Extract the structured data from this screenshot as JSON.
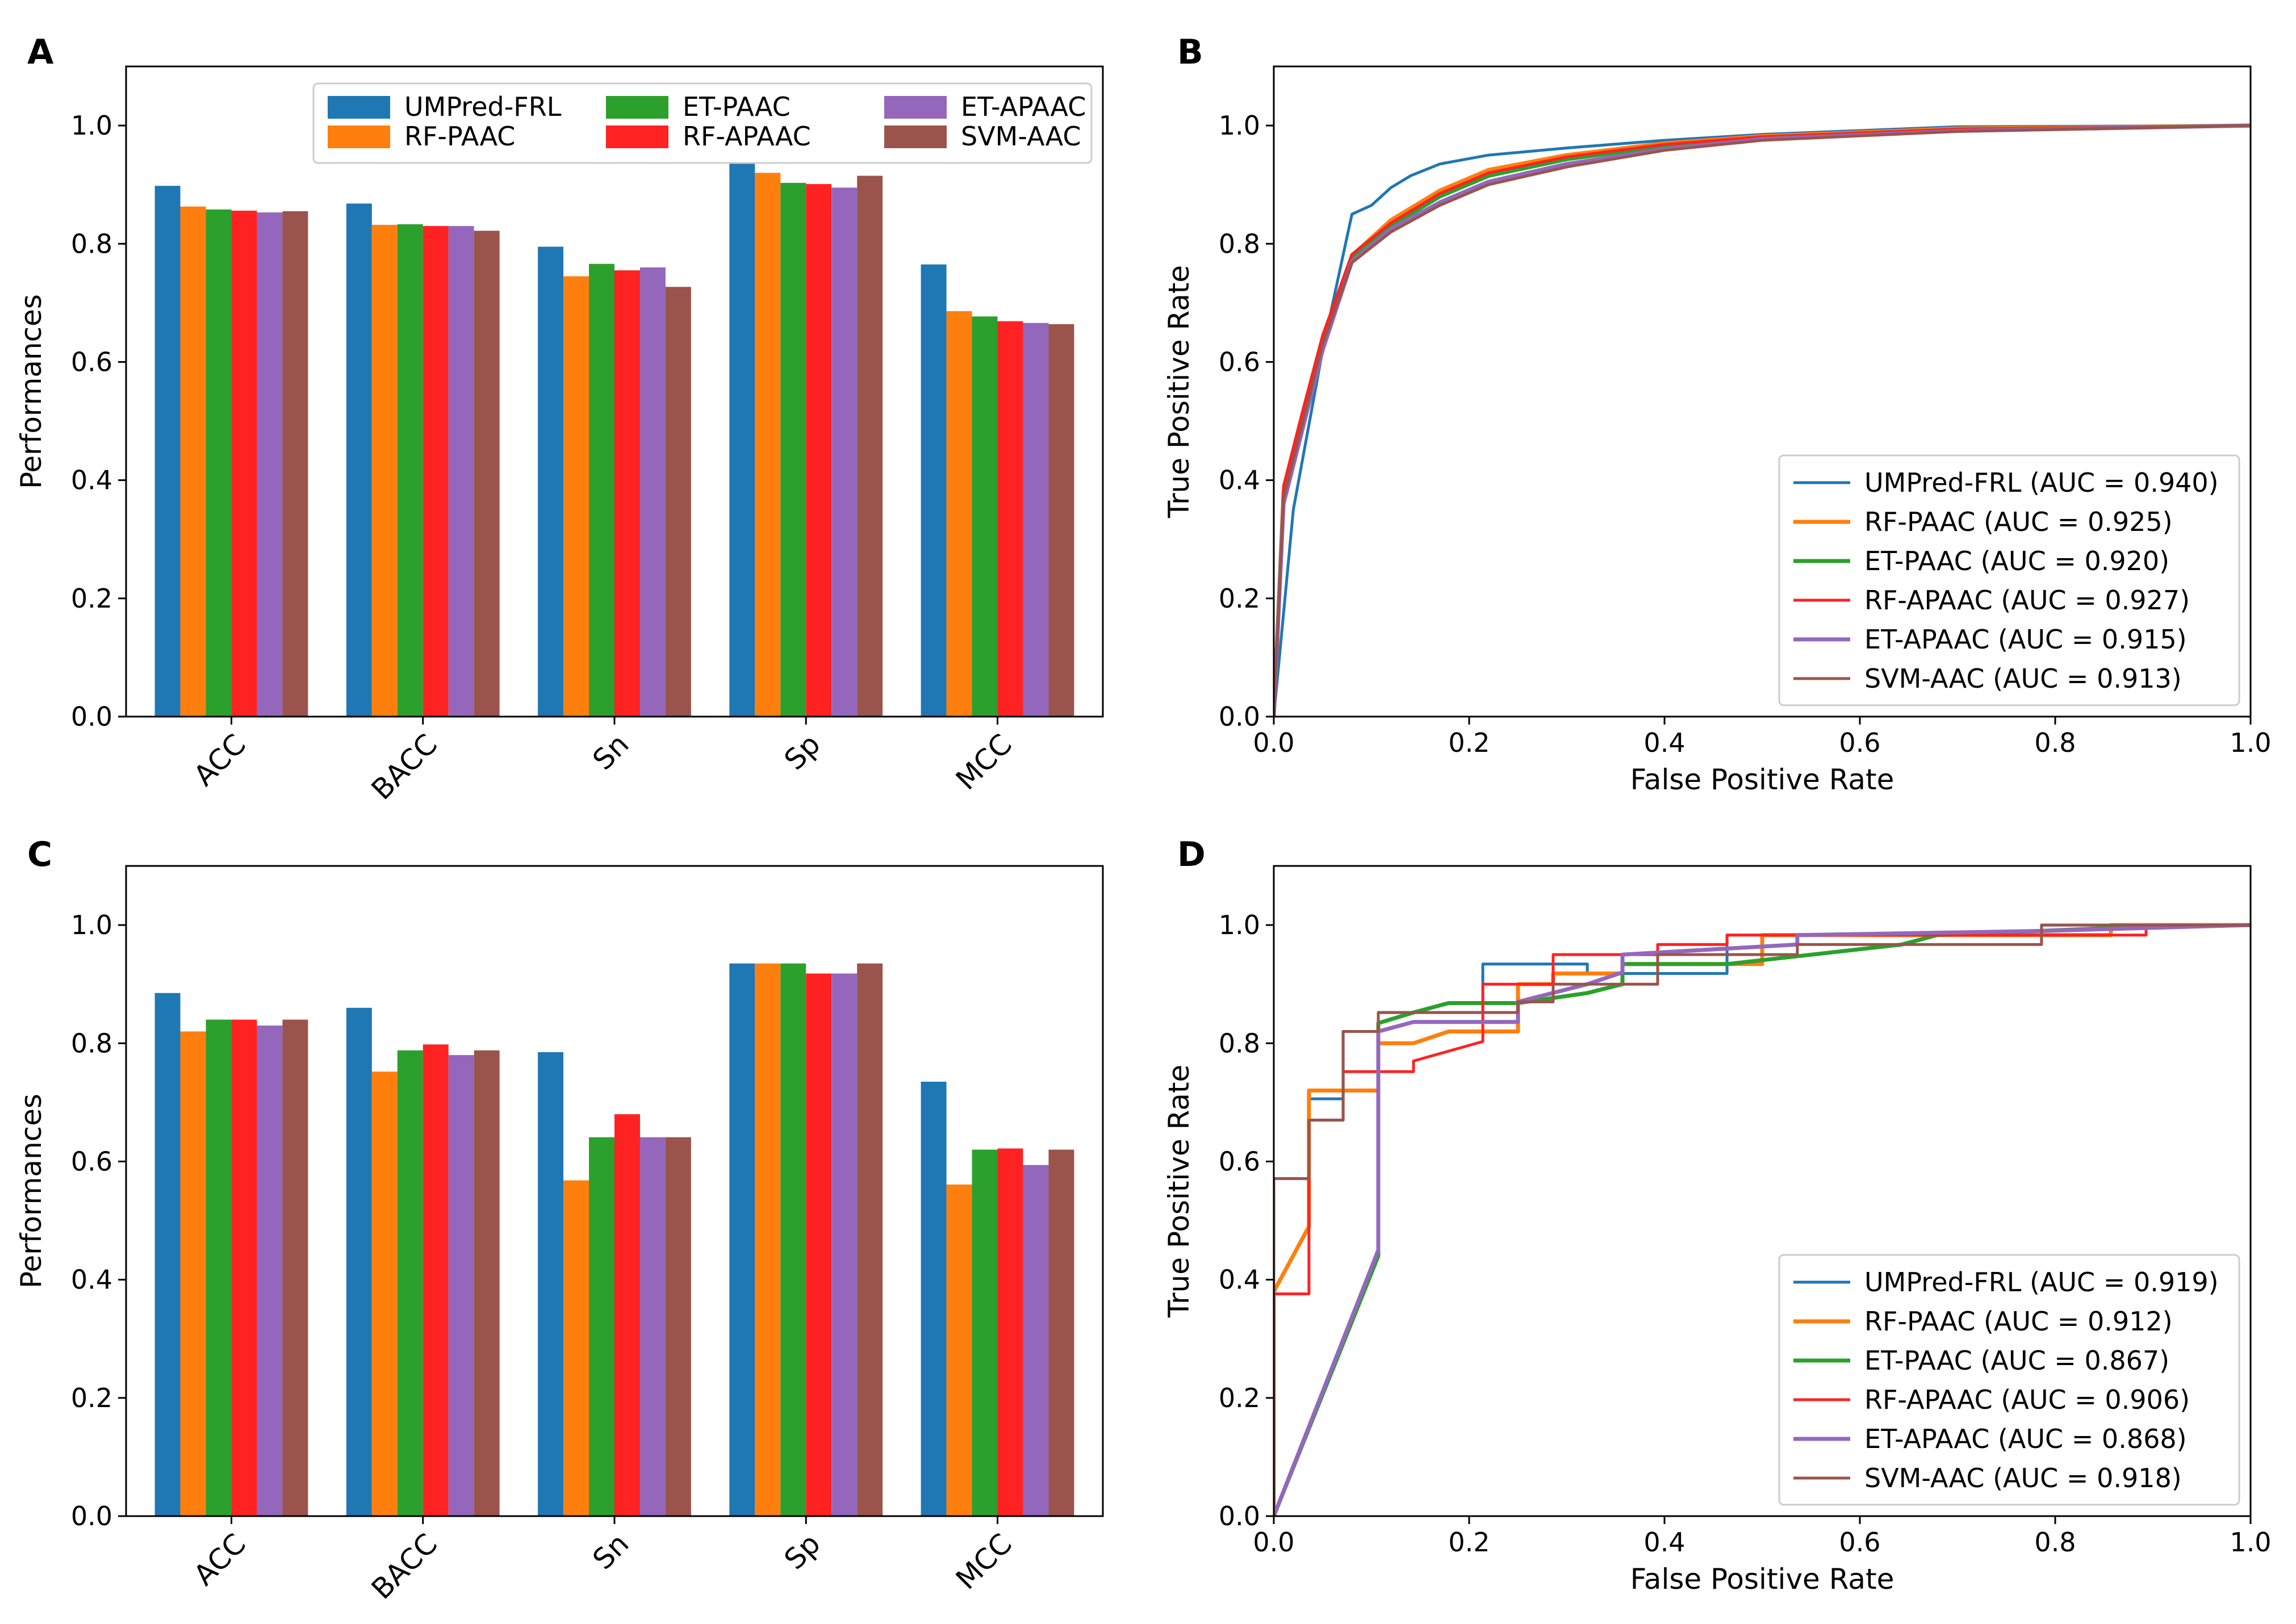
{
  "figure": {
    "panels": [
      {
        "id": "A",
        "label": "A"
      },
      {
        "id": "B",
        "label": "B"
      },
      {
        "id": "C",
        "label": "C"
      },
      {
        "id": "D",
        "label": "D"
      }
    ]
  },
  "chart_data": [
    {
      "panel": "A",
      "type": "bar",
      "title": "",
      "xlabel": "",
      "ylabel": "Performances",
      "ylim": [
        0,
        1.1
      ],
      "yticks": [
        "0.0",
        "0.2",
        "0.4",
        "0.6",
        "0.8",
        "1.0"
      ],
      "categories": [
        "ACC",
        "BACC",
        "Sn",
        "Sp",
        "MCC"
      ],
      "legend_position": "top-right",
      "series": [
        {
          "name": "UMPred-FRL",
          "color": "#1f77b4",
          "values": [
            0.898,
            0.868,
            0.795,
            0.946,
            0.765
          ]
        },
        {
          "name": "RF-PAAC",
          "color": "#ff7f0e",
          "values": [
            0.863,
            0.832,
            0.745,
            0.92,
            0.686
          ]
        },
        {
          "name": "ET-PAAC",
          "color": "#2ca02c",
          "values": [
            0.858,
            0.833,
            0.766,
            0.903,
            0.677
          ]
        },
        {
          "name": "RF-APAAC",
          "color": "#ff2222",
          "values": [
            0.856,
            0.83,
            0.755,
            0.901,
            0.669
          ]
        },
        {
          "name": "ET-APAAC",
          "color": "#9467bd",
          "values": [
            0.853,
            0.83,
            0.76,
            0.895,
            0.666
          ]
        },
        {
          "name": "SVM-AAC",
          "color": "#9a544b",
          "values": [
            0.855,
            0.822,
            0.727,
            0.915,
            0.664
          ]
        }
      ]
    },
    {
      "panel": "B",
      "type": "line",
      "title": "",
      "xlabel": "False Positive Rate",
      "ylabel": "True Positive Rate",
      "xlim": [
        0,
        1
      ],
      "ylim": [
        0,
        1.1
      ],
      "xticks": [
        "0.0",
        "0.2",
        "0.4",
        "0.6",
        "0.8",
        "1.0"
      ],
      "yticks": [
        "0.0",
        "0.2",
        "0.4",
        "0.6",
        "0.8",
        "1.0"
      ],
      "legend_position": "bottom-right",
      "series": [
        {
          "name": "UMPred-FRL (AUC = 0.940)",
          "color": "#1f77b4",
          "x": [
            0,
            0.02,
            0.05,
            0.08,
            0.1,
            0.12,
            0.14,
            0.17,
            0.22,
            0.3,
            0.4,
            0.5,
            0.7,
            1
          ],
          "y": [
            0,
            0.35,
            0.62,
            0.85,
            0.865,
            0.895,
            0.915,
            0.935,
            0.95,
            0.962,
            0.975,
            0.985,
            0.998,
            1
          ]
        },
        {
          "name": "RF-PAAC (AUC = 0.925)",
          "color": "#ff7f0e",
          "x": [
            0,
            0.01,
            0.03,
            0.05,
            0.08,
            0.12,
            0.17,
            0.22,
            0.3,
            0.4,
            0.5,
            0.7,
            1
          ],
          "y": [
            0,
            0.38,
            0.5,
            0.64,
            0.78,
            0.84,
            0.89,
            0.925,
            0.95,
            0.97,
            0.982,
            0.995,
            1
          ]
        },
        {
          "name": "ET-PAAC (AUC = 0.920)",
          "color": "#2ca02c",
          "x": [
            0,
            0.01,
            0.03,
            0.05,
            0.08,
            0.12,
            0.17,
            0.22,
            0.3,
            0.4,
            0.5,
            0.7,
            1
          ],
          "y": [
            0,
            0.37,
            0.5,
            0.63,
            0.775,
            0.83,
            0.88,
            0.915,
            0.943,
            0.965,
            0.98,
            0.993,
            1
          ]
        },
        {
          "name": "RF-APAAC (AUC = 0.927)",
          "color": "#ff2222",
          "x": [
            0,
            0.01,
            0.03,
            0.05,
            0.08,
            0.12,
            0.17,
            0.22,
            0.3,
            0.4,
            0.5,
            0.7,
            1
          ],
          "y": [
            0,
            0.39,
            0.52,
            0.645,
            0.782,
            0.835,
            0.885,
            0.92,
            0.947,
            0.968,
            0.981,
            0.994,
            1
          ]
        },
        {
          "name": "ET-APAAC (AUC = 0.915)",
          "color": "#9467bd",
          "x": [
            0,
            0.01,
            0.03,
            0.05,
            0.08,
            0.12,
            0.17,
            0.22,
            0.3,
            0.4,
            0.5,
            0.7,
            1
          ],
          "y": [
            0,
            0.36,
            0.49,
            0.62,
            0.77,
            0.825,
            0.87,
            0.905,
            0.935,
            0.96,
            0.977,
            0.991,
            1
          ]
        },
        {
          "name": "SVM-AAC (AUC = 0.913)",
          "color": "#9a544b",
          "x": [
            0,
            0.01,
            0.03,
            0.05,
            0.08,
            0.12,
            0.17,
            0.22,
            0.3,
            0.4,
            0.5,
            0.7,
            1
          ],
          "y": [
            0,
            0.37,
            0.5,
            0.63,
            0.768,
            0.82,
            0.865,
            0.9,
            0.93,
            0.958,
            0.975,
            0.99,
            1
          ]
        }
      ]
    },
    {
      "panel": "C",
      "type": "bar",
      "title": "",
      "xlabel": "",
      "ylabel": "Performances",
      "ylim": [
        0,
        1.1
      ],
      "yticks": [
        "0.0",
        "0.2",
        "0.4",
        "0.6",
        "0.8",
        "1.0"
      ],
      "categories": [
        "ACC",
        "BACC",
        "Sn",
        "Sp",
        "MCC"
      ],
      "series": [
        {
          "name": "UMPred-FRL",
          "color": "#1f77b4",
          "values": [
            0.885,
            0.86,
            0.785,
            0.935,
            0.735
          ]
        },
        {
          "name": "RF-PAAC",
          "color": "#ff7f0e",
          "values": [
            0.82,
            0.752,
            0.568,
            0.935,
            0.561
          ]
        },
        {
          "name": "ET-PAAC",
          "color": "#2ca02c",
          "values": [
            0.84,
            0.788,
            0.641,
            0.935,
            0.62
          ]
        },
        {
          "name": "RF-APAAC",
          "color": "#ff2222",
          "values": [
            0.84,
            0.798,
            0.68,
            0.918,
            0.622
          ]
        },
        {
          "name": "ET-APAAC",
          "color": "#9467bd",
          "values": [
            0.83,
            0.78,
            0.641,
            0.918,
            0.594
          ]
        },
        {
          "name": "SVM-AAC",
          "color": "#9a544b",
          "values": [
            0.84,
            0.788,
            0.641,
            0.935,
            0.62
          ]
        }
      ]
    },
    {
      "panel": "D",
      "type": "line",
      "title": "",
      "xlabel": "False Positive Rate",
      "ylabel": "True Positive Rate",
      "xlim": [
        0,
        1
      ],
      "ylim": [
        0,
        1.1
      ],
      "xticks": [
        "0.0",
        "0.2",
        "0.4",
        "0.6",
        "0.8",
        "1.0"
      ],
      "yticks": [
        "0.0",
        "0.2",
        "0.4",
        "0.6",
        "0.8",
        "1.0"
      ],
      "legend_position": "bottom-right",
      "series": [
        {
          "name": "UMPred-FRL (AUC = 0.919)",
          "color": "#1f77b4",
          "x": [
            0,
            0,
            0.036,
            0.036,
            0.071,
            0.071,
            0.107,
            0.107,
            0.214,
            0.214,
            0.321,
            0.321,
            0.464,
            0.464,
            0.786,
            0.786,
            1
          ],
          "y": [
            0,
            0.571,
            0.571,
            0.706,
            0.706,
            0.82,
            0.82,
            0.852,
            0.852,
            0.934,
            0.934,
            0.918,
            0.918,
            0.983,
            0.983,
            1,
            1
          ]
        },
        {
          "name": "RF-PAAC (AUC = 0.912)",
          "color": "#ff7f0e",
          "x": [
            0,
            0,
            0.036,
            0.036,
            0.107,
            0.107,
            0.143,
            0.179,
            0.25,
            0.25,
            0.286,
            0.286,
            0.357,
            0.357,
            0.5,
            0.5,
            0.857,
            0.857,
            1
          ],
          "y": [
            0,
            0.38,
            0.49,
            0.72,
            0.72,
            0.8,
            0.8,
            0.82,
            0.82,
            0.9,
            0.9,
            0.918,
            0.918,
            0.934,
            0.934,
            0.983,
            0.983,
            1,
            1
          ]
        },
        {
          "name": "ET-PAAC (AUC = 0.867)",
          "color": "#2ca02c",
          "x": [
            0,
            0.107,
            0.107,
            0.143,
            0.179,
            0.25,
            0.321,
            0.357,
            0.357,
            0.464,
            0.643,
            0.679,
            0.679,
            0.857,
            1
          ],
          "y": [
            0,
            0.44,
            0.834,
            0.852,
            0.868,
            0.868,
            0.885,
            0.9,
            0.934,
            0.934,
            0.967,
            0.983,
            0.983,
            0.995,
            1
          ]
        },
        {
          "name": "RF-APAAC (AUC = 0.906)",
          "color": "#ff2222",
          "x": [
            0,
            0,
            0.036,
            0.036,
            0.071,
            0.071,
            0.143,
            0.143,
            0.214,
            0.214,
            0.286,
            0.286,
            0.393,
            0.393,
            0.464,
            0.464,
            0.643,
            0.643,
            0.893,
            0.893,
            1
          ],
          "y": [
            0,
            0.376,
            0.376,
            0.67,
            0.67,
            0.752,
            0.752,
            0.77,
            0.803,
            0.9,
            0.9,
            0.95,
            0.95,
            0.967,
            0.967,
            0.983,
            0.983,
            0.983,
            0.983,
            1,
            1
          ]
        },
        {
          "name": "ET-APAAC (AUC = 0.868)",
          "color": "#9467bd",
          "x": [
            0,
            0.107,
            0.107,
            0.143,
            0.25,
            0.25,
            0.321,
            0.357,
            0.357,
            0.536,
            0.536,
            0.786,
            1
          ],
          "y": [
            0,
            0.45,
            0.82,
            0.836,
            0.836,
            0.87,
            0.9,
            0.92,
            0.95,
            0.967,
            0.983,
            0.99,
            1
          ]
        },
        {
          "name": "SVM-AAC (AUC = 0.918)",
          "color": "#9a544b",
          "x": [
            0,
            0,
            0.036,
            0.036,
            0.071,
            0.071,
            0.107,
            0.107,
            0.25,
            0.25,
            0.286,
            0.286,
            0.393,
            0.393,
            0.536,
            0.536,
            0.786,
            0.786,
            1
          ],
          "y": [
            0,
            0.571,
            0.571,
            0.67,
            0.67,
            0.82,
            0.82,
            0.852,
            0.852,
            0.87,
            0.87,
            0.9,
            0.9,
            0.95,
            0.95,
            0.967,
            0.967,
            1,
            1
          ]
        }
      ]
    }
  ]
}
